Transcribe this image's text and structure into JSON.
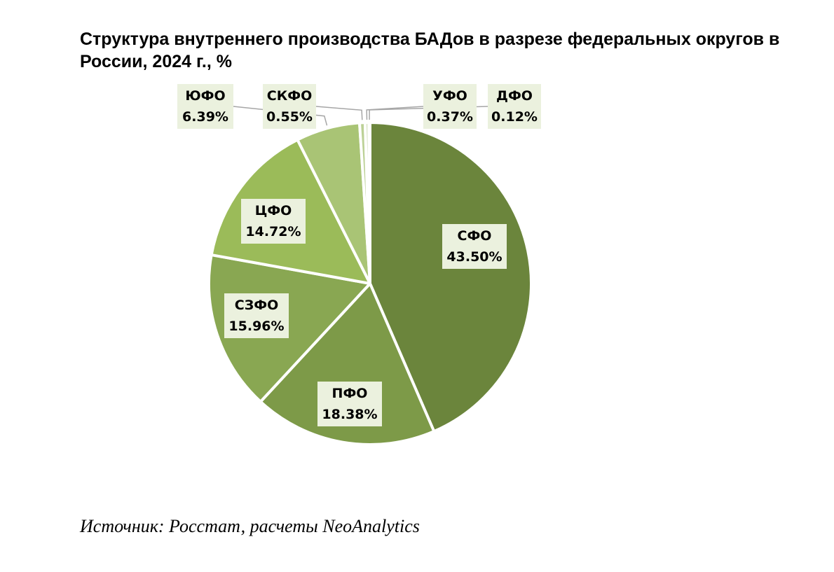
{
  "title": "Структура внутреннего производства БАДов в разрезе федеральных округов в России, 2024 г., %",
  "source": "Источник: Росстат, расчеты NeoAnalytics",
  "chart_data": {
    "type": "pie",
    "title": "Структура внутреннего производства БАДов в разрезе федеральных округов в России, 2024 г., %",
    "unit": "%",
    "slices": [
      {
        "name": "СФО",
        "value": 43.5,
        "label": "43.50%",
        "color": "#6b853c"
      },
      {
        "name": "ПФО",
        "value": 18.38,
        "label": "18.38%",
        "color": "#7d9a48"
      },
      {
        "name": "СЗФО",
        "value": 15.96,
        "label": "15.96%",
        "color": "#89a752"
      },
      {
        "name": "ЦФО",
        "value": 14.72,
        "label": "14.72%",
        "color": "#9bbb59"
      },
      {
        "name": "ЮФО",
        "value": 6.39,
        "label": "6.39%",
        "color": "#a9c475"
      },
      {
        "name": "СКФО",
        "value": 0.55,
        "label": "0.55%",
        "color": "#bcd196"
      },
      {
        "name": "УФО",
        "value": 0.37,
        "label": "0.37%",
        "color": "#cfddb5"
      },
      {
        "name": "ДФО",
        "value": 0.12,
        "label": "0.12%",
        "color": "#dfe8cf"
      }
    ],
    "start_angle_deg": 0,
    "direction": "clockwise"
  }
}
